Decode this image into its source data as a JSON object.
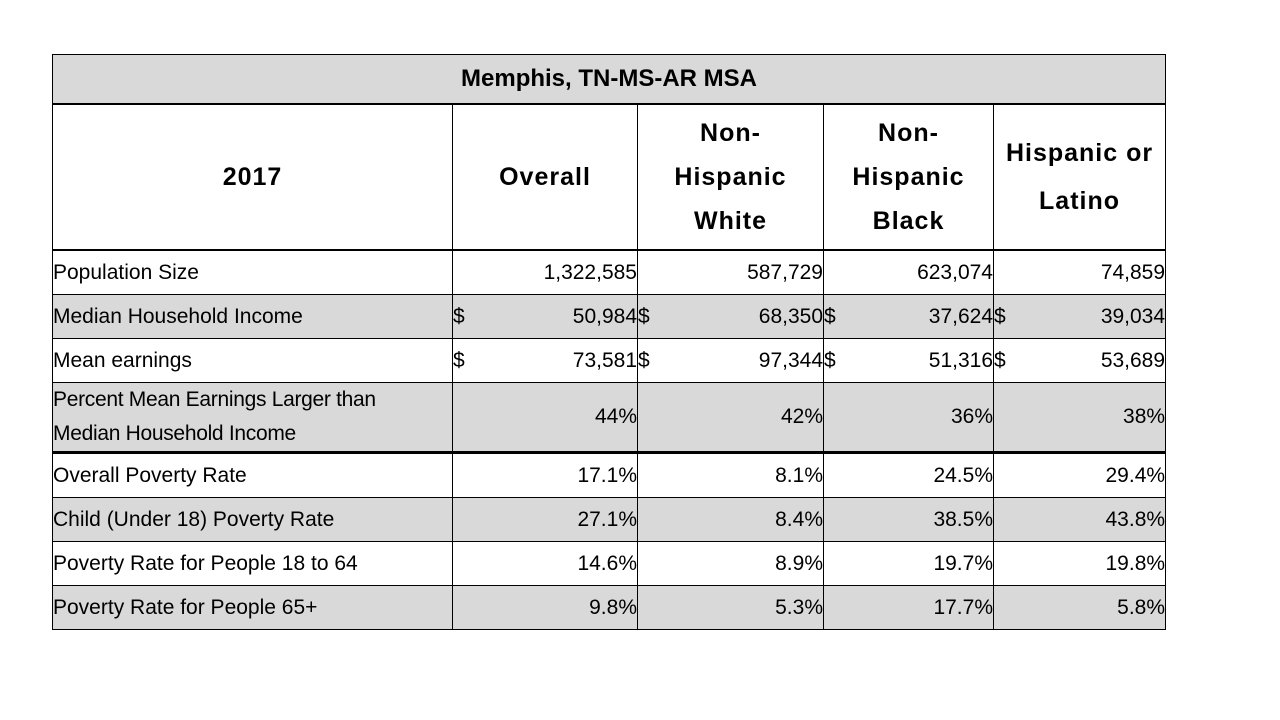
{
  "title": "Memphis, TN-MS-AR MSA",
  "headers": {
    "year": "2017",
    "overall": "Overall",
    "white": [
      "Non-",
      "Hispanic",
      "White"
    ],
    "black": [
      "Non-",
      "Hispanic",
      "Black"
    ],
    "latino": [
      "Hispanic or",
      "Latino"
    ]
  },
  "rows": {
    "population": {
      "label": "Population Size",
      "overall": "1,322,585",
      "white": "587,729",
      "black": "623,074",
      "latino": "74,859"
    },
    "median_income": {
      "label": "Median Household Income",
      "currency": "$",
      "overall": "50,984",
      "white": "68,350",
      "black": "37,624",
      "latino": "39,034"
    },
    "mean_earnings": {
      "label": "Mean earnings",
      "currency": "$",
      "overall": "73,581",
      "white": "97,344",
      "black": "51,316",
      "latino": "53,689"
    },
    "percent_mean": {
      "label_line1": "Percent Mean Earnings Larger than",
      "label_line2": "Median Household Income",
      "overall": "44%",
      "white": "42%",
      "black": "36%",
      "latino": "38%"
    },
    "overall_poverty": {
      "label": "Overall Poverty Rate",
      "overall": "17.1%",
      "white": "8.1%",
      "black": "24.5%",
      "latino": "29.4%"
    },
    "child_poverty": {
      "label": "Child (Under 18) Poverty Rate",
      "overall": "27.1%",
      "white": "8.4%",
      "black": "38.5%",
      "latino": "43.8%"
    },
    "poverty_18_64": {
      "label": "Poverty Rate for People 18 to 64",
      "overall": "14.6%",
      "white": "8.9%",
      "black": "19.7%",
      "latino": "19.8%"
    },
    "poverty_65": {
      "label": "Poverty Rate for People 65+",
      "overall": "9.8%",
      "white": "5.3%",
      "black": "17.7%",
      "latino": "5.8%"
    }
  }
}
